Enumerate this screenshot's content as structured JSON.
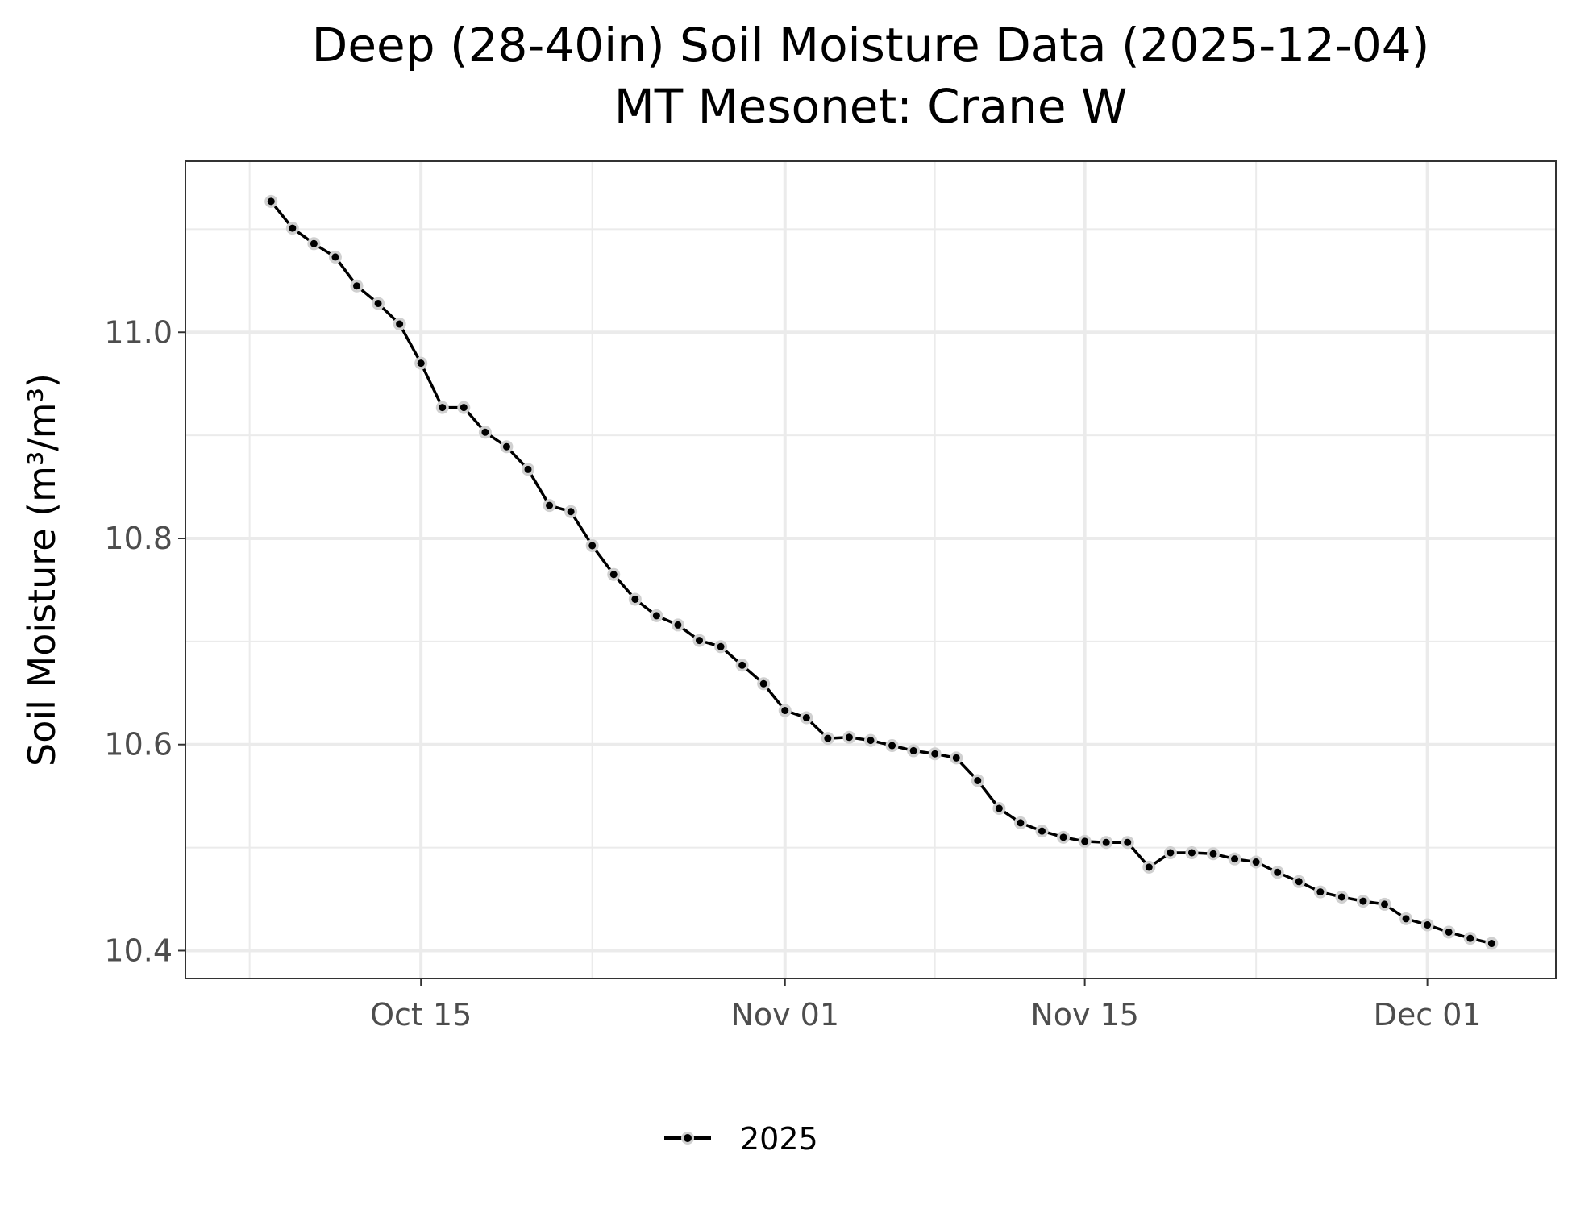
{
  "chart_data": {
    "type": "line",
    "title": "Deep (28-40in) Soil Moisture Data (2025-12-04)",
    "subtitle": "MT Mesonet: Crane W",
    "xlabel": "",
    "ylabel": "Soil Moisture (m³/m³)",
    "x_tick_labels": [
      {
        "date": "2025-10-15",
        "label": "Oct 15"
      },
      {
        "date": "2025-11-01",
        "label": "Nov 01"
      },
      {
        "date": "2025-11-15",
        "label": "Nov 15"
      },
      {
        "date": "2025-12-01",
        "label": "Dec 01"
      }
    ],
    "x_minor_dates": [
      "2025-10-07",
      "2025-10-23",
      "2025-11-08",
      "2025-11-23"
    ],
    "xlim": [
      "2025-10-04",
      "2025-12-07"
    ],
    "y_ticks": [
      10.4,
      10.6,
      10.8,
      11.0
    ],
    "y_tick_labels": [
      "10.4",
      "10.6",
      "10.8",
      "11.0"
    ],
    "y_minor_ticks": [
      10.5,
      10.7,
      10.9,
      11.1
    ],
    "ylim": [
      10.373,
      11.166
    ],
    "grid": true,
    "legend_position": "bottom",
    "colors": {
      "line": "#000000",
      "point_fill": "#000000",
      "point_halo": "#d0d0d0",
      "grid": "#ebebeb",
      "panel_border": "#333333"
    },
    "series": [
      {
        "name": "2025",
        "x": [
          "2025-10-08",
          "2025-10-09",
          "2025-10-10",
          "2025-10-11",
          "2025-10-12",
          "2025-10-13",
          "2025-10-14",
          "2025-10-15",
          "2025-10-16",
          "2025-10-17",
          "2025-10-18",
          "2025-10-19",
          "2025-10-20",
          "2025-10-21",
          "2025-10-22",
          "2025-10-23",
          "2025-10-24",
          "2025-10-25",
          "2025-10-26",
          "2025-10-27",
          "2025-10-28",
          "2025-10-29",
          "2025-10-30",
          "2025-10-31",
          "2025-11-01",
          "2025-11-02",
          "2025-11-03",
          "2025-11-04",
          "2025-11-05",
          "2025-11-06",
          "2025-11-07",
          "2025-11-08",
          "2025-11-09",
          "2025-11-10",
          "2025-11-11",
          "2025-11-12",
          "2025-11-13",
          "2025-11-14",
          "2025-11-15",
          "2025-11-16",
          "2025-11-17",
          "2025-11-18",
          "2025-11-19",
          "2025-11-20",
          "2025-11-21",
          "2025-11-22",
          "2025-11-23",
          "2025-11-24",
          "2025-11-25",
          "2025-11-26",
          "2025-11-27",
          "2025-11-28",
          "2025-11-29",
          "2025-11-30",
          "2025-12-01",
          "2025-12-02",
          "2025-12-03",
          "2025-12-04"
        ],
        "y": [
          11.127,
          11.101,
          11.086,
          11.073,
          11.045,
          11.028,
          11.008,
          10.97,
          10.927,
          10.927,
          10.903,
          10.889,
          10.867,
          10.832,
          10.826,
          10.793,
          10.765,
          10.741,
          10.725,
          10.716,
          10.701,
          10.695,
          10.677,
          10.659,
          10.633,
          10.626,
          10.606,
          10.607,
          10.604,
          10.599,
          10.594,
          10.591,
          10.587,
          10.565,
          10.538,
          10.524,
          10.516,
          10.51,
          10.506,
          10.505,
          10.505,
          10.481,
          10.495,
          10.495,
          10.494,
          10.489,
          10.486,
          10.476,
          10.467,
          10.457,
          10.452,
          10.448,
          10.445,
          10.431,
          10.425,
          10.418,
          10.412,
          10.407
        ]
      }
    ]
  }
}
